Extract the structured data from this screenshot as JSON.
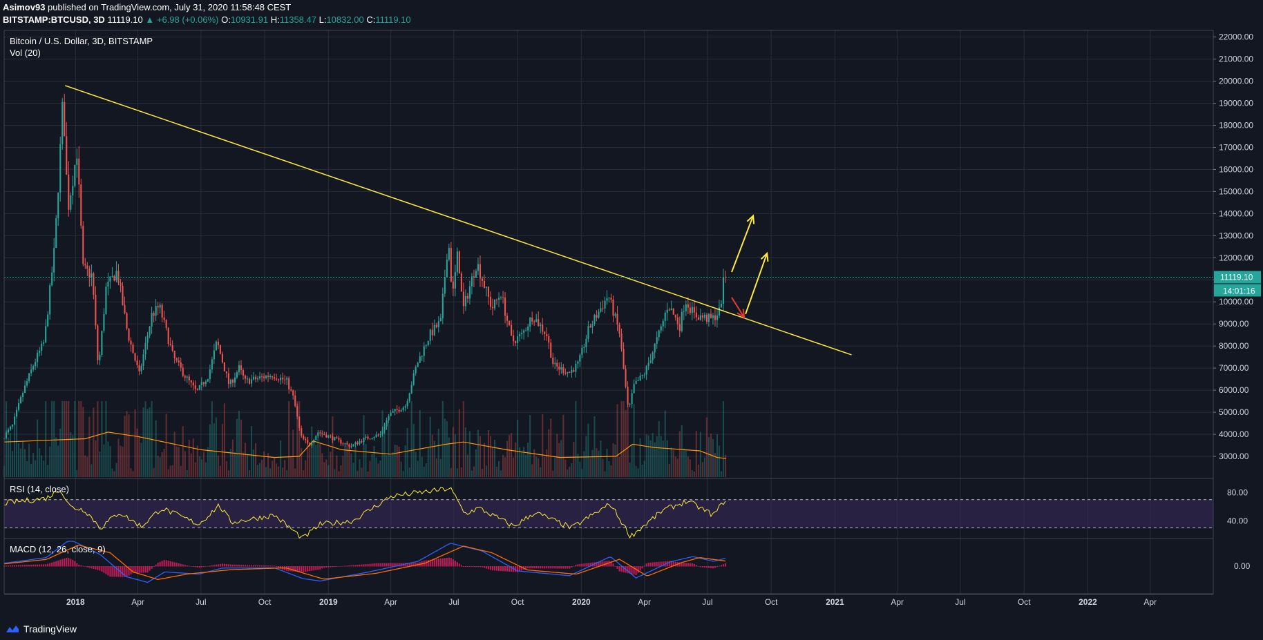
{
  "header": {
    "author": "Asimov93",
    "published_text": "published on TradingView.com, July 31, 2020 11:58:48 CEST",
    "symbol": "BITSTAMP:BTCUSD, 3D",
    "last": "11119.10",
    "change": "▲ +6.98 (+0.06%)",
    "o_label": "O:",
    "o_value": "10931.91",
    "h_label": "H:",
    "h_value": "11358.47",
    "l_label": "L:",
    "l_value": "10832.00",
    "c_label": "C:",
    "c_value": "11119.10"
  },
  "footer": {
    "brand": "TradingView",
    "logo_icon": "tradingview-logo-icon"
  },
  "colors": {
    "background": "#131722",
    "grid": "#2a2e39",
    "up": "#26a69a",
    "down": "#ef5350",
    "trendline": "#ffeb3b",
    "vol_ma": "#ff9800",
    "rsi": "#ffeb3b",
    "macd": "#2962ff",
    "signal": "#ff6d00",
    "hist": "#e91e63",
    "last_price_bg": "#26a69a",
    "rsi_band": "#3b2a5c"
  },
  "chart_data": [
    {
      "type": "candlestick",
      "title": "Bitcoin / U.S. Dollar, 3D, BITSTAMP",
      "series_name": "BTCUSD",
      "y_ticks": [
        "22000.00",
        "21000.00",
        "20000.00",
        "19000.00",
        "18000.00",
        "17000.00",
        "16000.00",
        "15000.00",
        "14000.00",
        "13000.00",
        "12000.00",
        "11000.00",
        "10000.00",
        "9000.00",
        "8000.00",
        "7000.00",
        "6000.00",
        "5000.00",
        "4000.00",
        "3000.00"
      ],
      "y_tick_values": [
        22000,
        21000,
        20000,
        19000,
        18000,
        17000,
        16000,
        15000,
        14000,
        13000,
        12000,
        11000,
        10000,
        9000,
        8000,
        7000,
        6000,
        5000,
        4000,
        3000
      ],
      "ylim": [
        2000,
        22300
      ],
      "x_ticks": [
        {
          "label": "2018",
          "date": "2018-01-01",
          "bold": true
        },
        {
          "label": "Apr",
          "date": "2018-04-01"
        },
        {
          "label": "Jul",
          "date": "2018-07-01"
        },
        {
          "label": "Oct",
          "date": "2018-10-01"
        },
        {
          "label": "2019",
          "date": "2019-01-01",
          "bold": true
        },
        {
          "label": "Apr",
          "date": "2019-04-01"
        },
        {
          "label": "Jul",
          "date": "2019-07-01"
        },
        {
          "label": "Oct",
          "date": "2019-10-01"
        },
        {
          "label": "2020",
          "date": "2020-01-01",
          "bold": true
        },
        {
          "label": "Apr",
          "date": "2020-04-01"
        },
        {
          "label": "Jul",
          "date": "2020-07-01"
        },
        {
          "label": "Oct",
          "date": "2020-10-01"
        },
        {
          "label": "2021",
          "date": "2021-01-01",
          "bold": true
        },
        {
          "label": "Apr",
          "date": "2021-04-01"
        },
        {
          "label": "Jul",
          "date": "2021-07-01"
        },
        {
          "label": "Oct",
          "date": "2021-10-01"
        },
        {
          "label": "2022",
          "date": "2022-01-01",
          "bold": true
        },
        {
          "label": "Apr",
          "date": "2022-04-01"
        }
      ],
      "xlim": [
        "2017-09-20",
        "2022-07-01"
      ],
      "price_path": [
        [
          "2017-09-20",
          3800
        ],
        [
          "2017-10-05",
          4400
        ],
        [
          "2017-10-20",
          5900
        ],
        [
          "2017-11-05",
          7200
        ],
        [
          "2017-11-20",
          8200
        ],
        [
          "2017-12-05",
          12500
        ],
        [
          "2017-12-14",
          17500
        ],
        [
          "2017-12-17",
          19300
        ],
        [
          "2017-12-24",
          14200
        ],
        [
          "2018-01-06",
          16800
        ],
        [
          "2018-01-15",
          11500
        ],
        [
          "2018-01-28",
          11200
        ],
        [
          "2018-02-06",
          6900
        ],
        [
          "2018-02-17",
          10600
        ],
        [
          "2018-03-05",
          11400
        ],
        [
          "2018-03-20",
          8600
        ],
        [
          "2018-04-06",
          6700
        ],
        [
          "2018-04-24",
          9400
        ],
        [
          "2018-05-05",
          9800
        ],
        [
          "2018-05-25",
          7500
        ],
        [
          "2018-06-12",
          6600
        ],
        [
          "2018-06-28",
          5900
        ],
        [
          "2018-07-15",
          6700
        ],
        [
          "2018-07-27",
          8200
        ],
        [
          "2018-08-14",
          6200
        ],
        [
          "2018-08-28",
          7000
        ],
        [
          "2018-09-06",
          6400
        ],
        [
          "2018-09-20",
          6500
        ],
        [
          "2018-10-15",
          6700
        ],
        [
          "2018-11-05",
          6400
        ],
        [
          "2018-11-15",
          5600
        ],
        [
          "2018-11-25",
          3900
        ],
        [
          "2018-12-07",
          3500
        ],
        [
          "2018-12-20",
          4100
        ],
        [
          "2019-01-05",
          3900
        ],
        [
          "2019-02-05",
          3450
        ],
        [
          "2019-02-25",
          3800
        ],
        [
          "2019-03-20",
          4000
        ],
        [
          "2019-04-02",
          4900
        ],
        [
          "2019-04-25",
          5300
        ],
        [
          "2019-05-12",
          7200
        ],
        [
          "2019-05-30",
          8500
        ],
        [
          "2019-06-15",
          9100
        ],
        [
          "2019-06-26",
          12900
        ],
        [
          "2019-07-02",
          10200
        ],
        [
          "2019-07-10",
          12300
        ],
        [
          "2019-07-17",
          9600
        ],
        [
          "2019-08-06",
          11800
        ],
        [
          "2019-08-28",
          9700
        ],
        [
          "2019-09-10",
          10400
        ],
        [
          "2019-09-26",
          8200
        ],
        [
          "2019-10-10",
          8500
        ],
        [
          "2019-10-26",
          9400
        ],
        [
          "2019-11-15",
          8500
        ],
        [
          "2019-11-25",
          7100
        ],
        [
          "2019-12-18",
          6800
        ],
        [
          "2019-12-31",
          7200
        ],
        [
          "2020-01-15",
          8800
        ],
        [
          "2020-02-12",
          10300
        ],
        [
          "2020-02-28",
          8600
        ],
        [
          "2020-03-12",
          5000
        ],
        [
          "2020-03-20",
          6200
        ],
        [
          "2020-04-05",
          6800
        ],
        [
          "2020-04-28",
          8800
        ],
        [
          "2020-05-08",
          9900
        ],
        [
          "2020-05-25",
          8900
        ],
        [
          "2020-06-02",
          10100
        ],
        [
          "2020-06-15",
          9400
        ],
        [
          "2020-07-10",
          9200
        ],
        [
          "2020-07-22",
          9600
        ],
        [
          "2020-07-28",
          11119
        ]
      ],
      "trendline": {
        "from": [
          "2017-12-17",
          19800
        ],
        "to": [
          "2021-01-25",
          7600
        ]
      },
      "last_price": {
        "value": 11119.1,
        "label": "11119.10",
        "countdown": "14:01:16"
      },
      "arrows": [
        {
          "color": "yellow",
          "from": [
            "2020-08-05",
            11350
          ],
          "to": [
            "2020-09-05",
            13900
          ]
        },
        {
          "color": "red",
          "from": [
            "2020-08-05",
            10200
          ],
          "to": [
            "2020-08-23",
            9300
          ]
        },
        {
          "color": "yellow",
          "from": [
            "2020-08-25",
            9450
          ],
          "to": [
            "2020-09-25",
            12200
          ]
        }
      ]
    },
    {
      "type": "bar",
      "title": "Vol (20)",
      "series": [
        {
          "name": "Volume"
        },
        {
          "name": "Vol MA"
        }
      ],
      "vol_ma_path": [
        [
          "2017-09-20",
          3650
        ],
        [
          "2018-01-15",
          3800
        ],
        [
          "2018-02-17",
          4100
        ],
        [
          "2018-04-01",
          3900
        ],
        [
          "2018-07-01",
          3300
        ],
        [
          "2018-10-15",
          2950
        ],
        [
          "2018-11-20",
          3000
        ],
        [
          "2018-12-10",
          3700
        ],
        [
          "2019-01-20",
          3300
        ],
        [
          "2019-04-01",
          3100
        ],
        [
          "2019-06-20",
          3550
        ],
        [
          "2019-07-15",
          3650
        ],
        [
          "2019-09-15",
          3300
        ],
        [
          "2019-12-01",
          2950
        ],
        [
          "2020-02-20",
          3000
        ],
        [
          "2020-03-15",
          3550
        ],
        [
          "2020-04-15",
          3400
        ],
        [
          "2020-06-20",
          3250
        ],
        [
          "2020-07-15",
          2950
        ],
        [
          "2020-07-28",
          2900
        ]
      ]
    },
    {
      "type": "line",
      "title": "RSI (14, close)",
      "y_ticks": [
        "80.00",
        "40.00"
      ],
      "y_tick_values": [
        80,
        40
      ],
      "band": [
        30,
        70
      ],
      "ylim": [
        15,
        100
      ],
      "rsi_path": [
        [
          "2017-09-20",
          65
        ],
        [
          "2017-11-20",
          72
        ],
        [
          "2017-12-10",
          85
        ],
        [
          "2017-12-24",
          60
        ],
        [
          "2018-01-15",
          55
        ],
        [
          "2018-02-06",
          30
        ],
        [
          "2018-03-05",
          52
        ],
        [
          "2018-04-06",
          32
        ],
        [
          "2018-05-05",
          58
        ],
        [
          "2018-06-28",
          35
        ],
        [
          "2018-07-27",
          62
        ],
        [
          "2018-08-14",
          38
        ],
        [
          "2018-10-15",
          48
        ],
        [
          "2018-11-25",
          15
        ],
        [
          "2018-12-20",
          35
        ],
        [
          "2019-02-05",
          40
        ],
        [
          "2019-04-02",
          75
        ],
        [
          "2019-05-30",
          82
        ],
        [
          "2019-06-26",
          86
        ],
        [
          "2019-07-17",
          50
        ],
        [
          "2019-08-06",
          58
        ],
        [
          "2019-09-26",
          32
        ],
        [
          "2019-10-26",
          52
        ],
        [
          "2019-12-18",
          30
        ],
        [
          "2020-02-12",
          64
        ],
        [
          "2020-03-12",
          18
        ],
        [
          "2020-04-28",
          55
        ],
        [
          "2020-06-02",
          68
        ],
        [
          "2020-07-10",
          48
        ],
        [
          "2020-07-28",
          72
        ]
      ]
    },
    {
      "type": "line",
      "title": "MACD (12, 26, close, 9)",
      "y_ticks": [
        "0.00"
      ],
      "y_tick_values": [
        0
      ],
      "ylim": [
        -1300,
        1300
      ],
      "macd_path": [
        [
          "2017-09-20",
          150
        ],
        [
          "2017-11-20",
          450
        ],
        [
          "2017-12-24",
          1400
        ],
        [
          "2018-02-06",
          600
        ],
        [
          "2018-03-15",
          -550
        ],
        [
          "2018-04-15",
          -850
        ],
        [
          "2018-05-10",
          -300
        ],
        [
          "2018-06-28",
          -420
        ],
        [
          "2018-08-01",
          -100
        ],
        [
          "2018-10-15",
          -90
        ],
        [
          "2018-11-25",
          -650
        ],
        [
          "2018-12-20",
          -780
        ],
        [
          "2019-03-01",
          -300
        ],
        [
          "2019-05-10",
          250
        ],
        [
          "2019-06-26",
          1200
        ],
        [
          "2019-08-10",
          800
        ],
        [
          "2019-10-01",
          -250
        ],
        [
          "2019-12-15",
          -500
        ],
        [
          "2020-02-12",
          500
        ],
        [
          "2020-03-20",
          -620
        ],
        [
          "2020-05-08",
          220
        ],
        [
          "2020-06-10",
          500
        ],
        [
          "2020-07-10",
          250
        ],
        [
          "2020-07-28",
          420
        ]
      ],
      "signal_path": [
        [
          "2017-09-20",
          120
        ],
        [
          "2017-11-20",
          350
        ],
        [
          "2018-01-05",
          1100
        ],
        [
          "2018-02-20",
          700
        ],
        [
          "2018-03-25",
          -300
        ],
        [
          "2018-04-30",
          -700
        ],
        [
          "2018-06-10",
          -420
        ],
        [
          "2018-08-15",
          -180
        ],
        [
          "2018-11-01",
          -90
        ],
        [
          "2018-12-25",
          -680
        ],
        [
          "2019-03-10",
          -380
        ],
        [
          "2019-05-20",
          150
        ],
        [
          "2019-07-15",
          1050
        ],
        [
          "2019-08-25",
          700
        ],
        [
          "2019-10-15",
          -200
        ],
        [
          "2019-12-25",
          -420
        ],
        [
          "2020-02-25",
          360
        ],
        [
          "2020-04-05",
          -520
        ],
        [
          "2020-05-25",
          190
        ],
        [
          "2020-06-20",
          450
        ],
        [
          "2020-07-28",
          260
        ]
      ]
    }
  ]
}
